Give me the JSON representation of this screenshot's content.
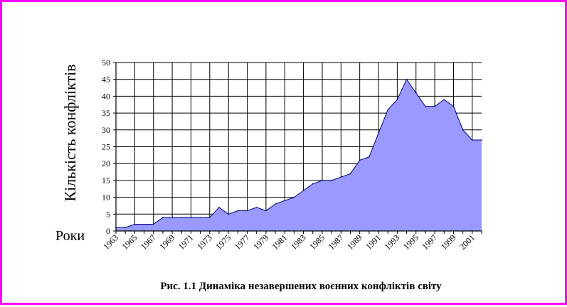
{
  "chart_data": {
    "type": "area",
    "title": "",
    "caption": "Рис. 1.1 Динаміка незавершених воєнних конфліктів світу",
    "xlabel": "Роки",
    "ylabel": "Кількість конфліктів",
    "ylim": [
      0,
      50
    ],
    "yticks": [
      "0",
      "5",
      "10",
      "15",
      "20",
      "25",
      "30",
      "35",
      "40",
      "45",
      "50"
    ],
    "xtick_labels": [
      "1963",
      "1965",
      "1967",
      "1969",
      "1971",
      "1973",
      "1975",
      "1977",
      "1979",
      "1981",
      "1983",
      "1985",
      "1987",
      "1989",
      "1991",
      "1993",
      "1995",
      "1997",
      "1999",
      "2001"
    ],
    "grid": true,
    "fill_color": "#9999ff",
    "line_color": "#000080",
    "x": [
      1963,
      1964,
      1965,
      1966,
      1967,
      1968,
      1969,
      1970,
      1971,
      1972,
      1973,
      1974,
      1975,
      1976,
      1977,
      1978,
      1979,
      1980,
      1981,
      1982,
      1983,
      1984,
      1985,
      1986,
      1987,
      1988,
      1989,
      1990,
      1991,
      1992,
      1993,
      1994,
      1995,
      1996,
      1997,
      1998,
      1999,
      2000,
      2001,
      2002
    ],
    "values": [
      1,
      1,
      2,
      2,
      2,
      4,
      4,
      4,
      4,
      4,
      4,
      7,
      5,
      6,
      6,
      7,
      6,
      8,
      9,
      10,
      12,
      14,
      15,
      15,
      16,
      17,
      21,
      22,
      29,
      36,
      39,
      45,
      41,
      37,
      37,
      39,
      37,
      30,
      27,
      27
    ]
  }
}
